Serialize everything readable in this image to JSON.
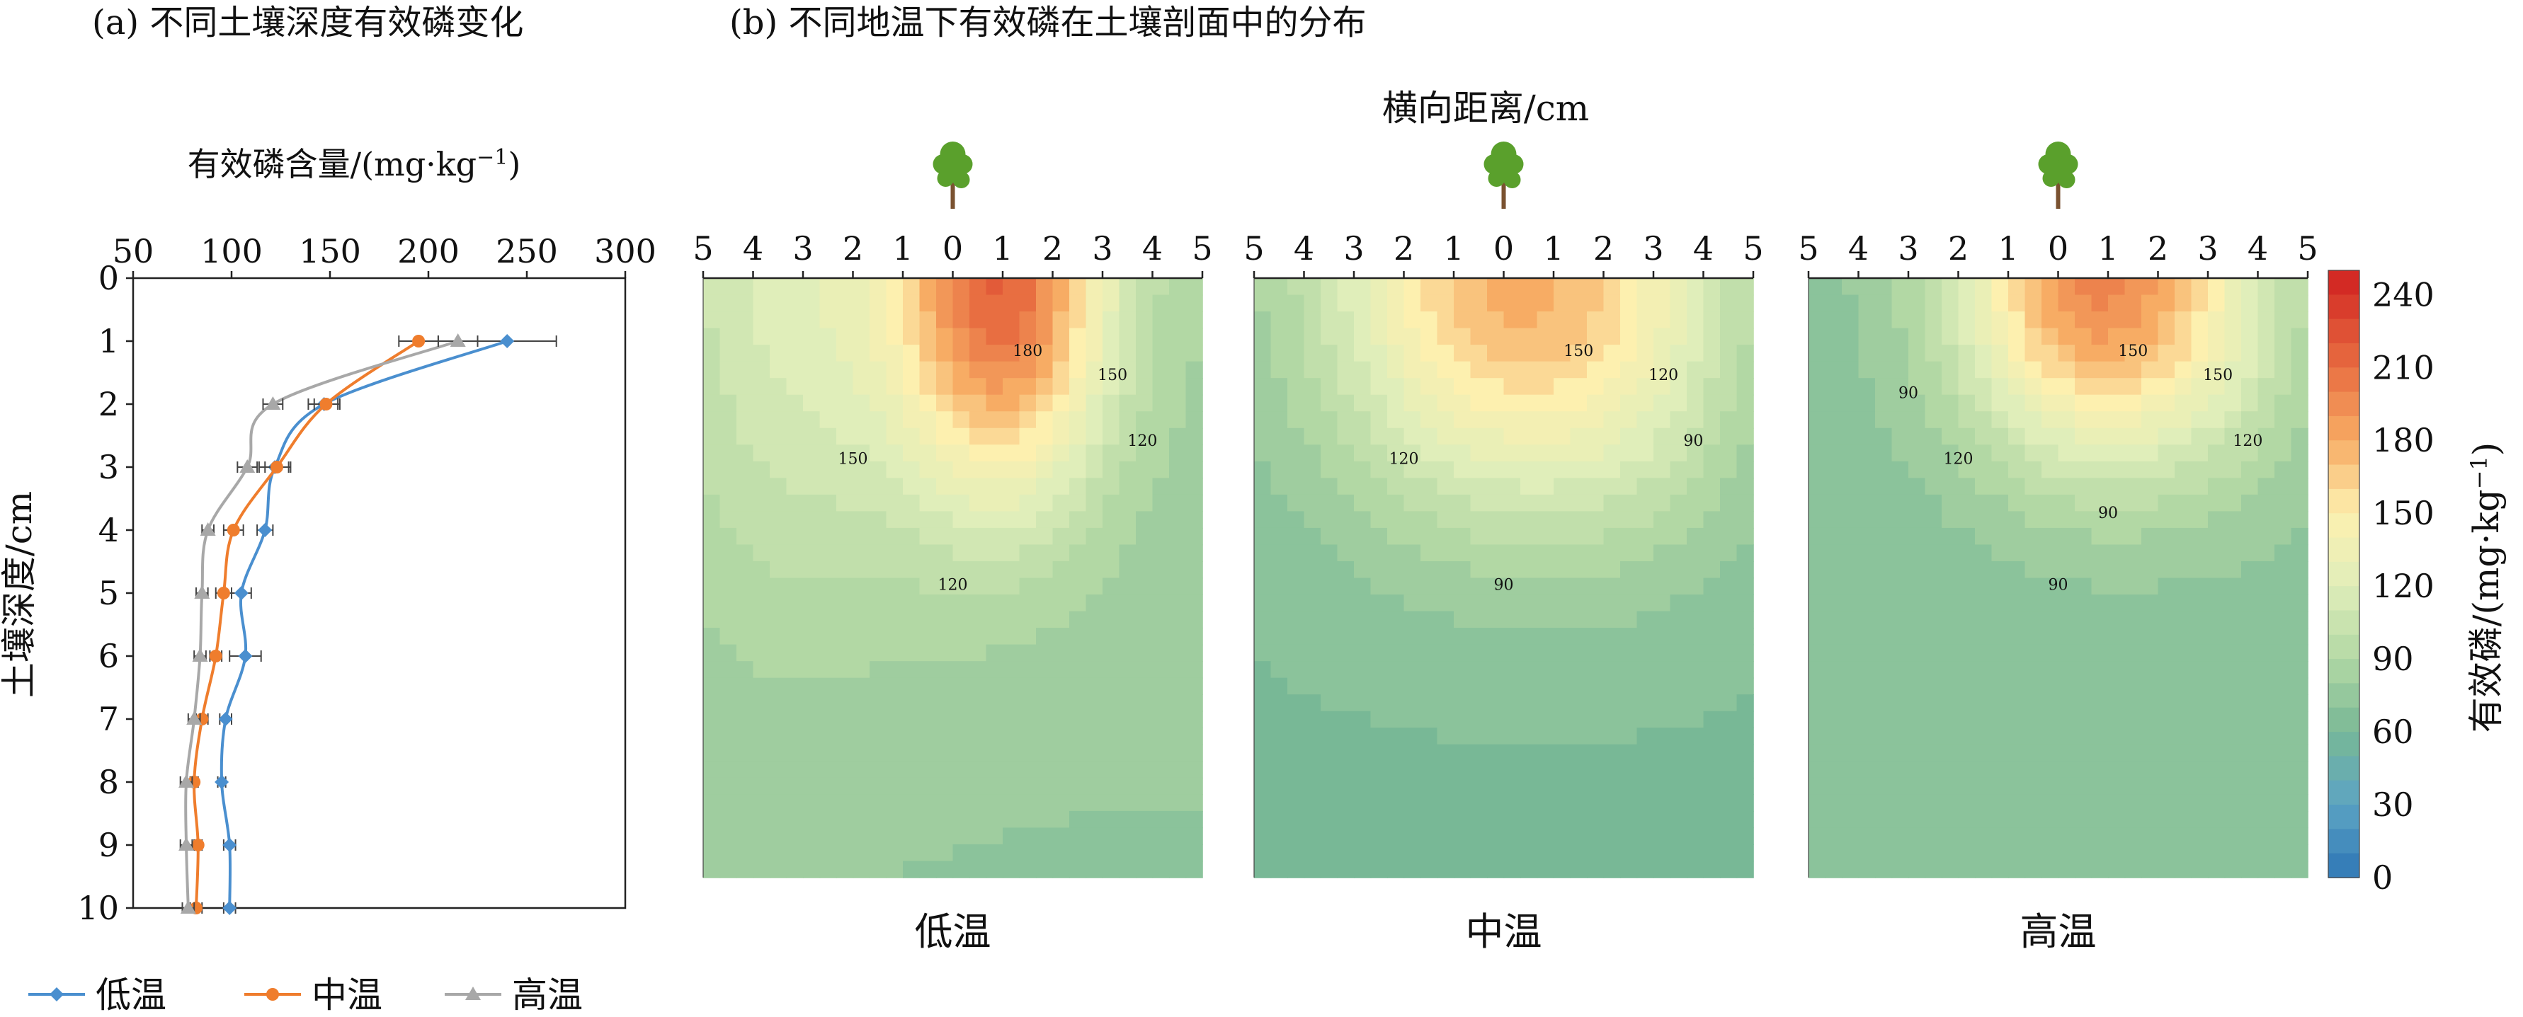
{
  "panel_a": {
    "title": "(a) 不同土壤深度有效磷变化",
    "xlabel": "有效磷含量/(mg·kg",
    "xlabel_sup": "−1",
    "xlabel_close": ")",
    "ylabel": "土壤深度/cm"
  },
  "panel_b": {
    "title": "(b) 不同地温下有效磷在土壤剖面中的分布",
    "xlabel": "横向距离/cm",
    "colorbar_label": "有效磷/(mg·kg",
    "colorbar_label_sup": "−1",
    "colorbar_label_close": ")"
  },
  "legend_position": "bottom",
  "colors": {
    "low": "#4a8fcf",
    "mid": "#ef7d2d",
    "high": "#a8a8a8",
    "tree_leaf": "#5aa02c",
    "tree_trunk": "#7a5230"
  },
  "tree_icon": "tree-seedling-icon",
  "chart_data": [
    {
      "type": "line",
      "title": "(a) 不同土壤深度有效磷变化",
      "xlabel": "有效磷含量/(mg·kg−1)",
      "ylabel": "土壤深度/cm",
      "x_axis_position": "top",
      "y_inverted": true,
      "xlim": [
        50,
        300
      ],
      "ylim": [
        0,
        10
      ],
      "xticks": [
        "50",
        "100",
        "150",
        "200",
        "250",
        "300"
      ],
      "yticks": [
        "0",
        "1",
        "2",
        "3",
        "4",
        "5",
        "6",
        "7",
        "8",
        "9",
        "10"
      ],
      "depth": [
        1,
        2,
        3,
        4,
        5,
        6,
        7,
        8,
        9,
        10
      ],
      "series": [
        {
          "name": "低温",
          "key": "low",
          "marker": "diamond",
          "values": [
            240,
            147,
            122,
            117,
            105,
            107,
            97,
            95,
            99,
            99
          ],
          "errors": [
            25,
            8,
            8,
            4,
            5,
            8,
            3,
            2,
            3,
            3
          ]
        },
        {
          "name": "中温",
          "key": "mid",
          "marker": "circle",
          "values": [
            195,
            148,
            123,
            101,
            96,
            92,
            85,
            81,
            83,
            82
          ],
          "errors": [
            10,
            6,
            6,
            5,
            4,
            3,
            3,
            2,
            2,
            3
          ]
        },
        {
          "name": "高温",
          "key": "high",
          "marker": "triangle",
          "values": [
            215,
            121,
            108,
            88,
            85,
            84,
            81,
            77,
            77,
            78
          ],
          "errors": [
            10,
            5,
            5,
            3,
            3,
            3,
            3,
            3,
            3,
            3
          ]
        }
      ]
    },
    {
      "type": "heatmap",
      "title": "(b) 不同地温下有效磷在土壤剖面中的分布",
      "xlabel": "横向距离/cm",
      "xticks": [
        "5",
        "4",
        "3",
        "2",
        "1",
        "0",
        "1",
        "2",
        "3",
        "4",
        "5"
      ],
      "colorbar": {
        "ticks": [
          "0",
          "30",
          "60",
          "90",
          "120",
          "150",
          "180",
          "210",
          "240"
        ],
        "range": [
          0,
          250
        ],
        "step": 10
      },
      "panels": [
        {
          "name": "低温",
          "key": "low",
          "contour_labels": [
            "180",
            "150",
            "150",
            "120",
            "120"
          ]
        },
        {
          "name": "中温",
          "key": "mid",
          "contour_labels": [
            "150",
            "120",
            "120",
            "90",
            "90"
          ]
        },
        {
          "name": "高温",
          "key": "high",
          "contour_labels": [
            "150",
            "150",
            "120",
            "120",
            "90",
            "90",
            "90"
          ]
        }
      ]
    }
  ]
}
